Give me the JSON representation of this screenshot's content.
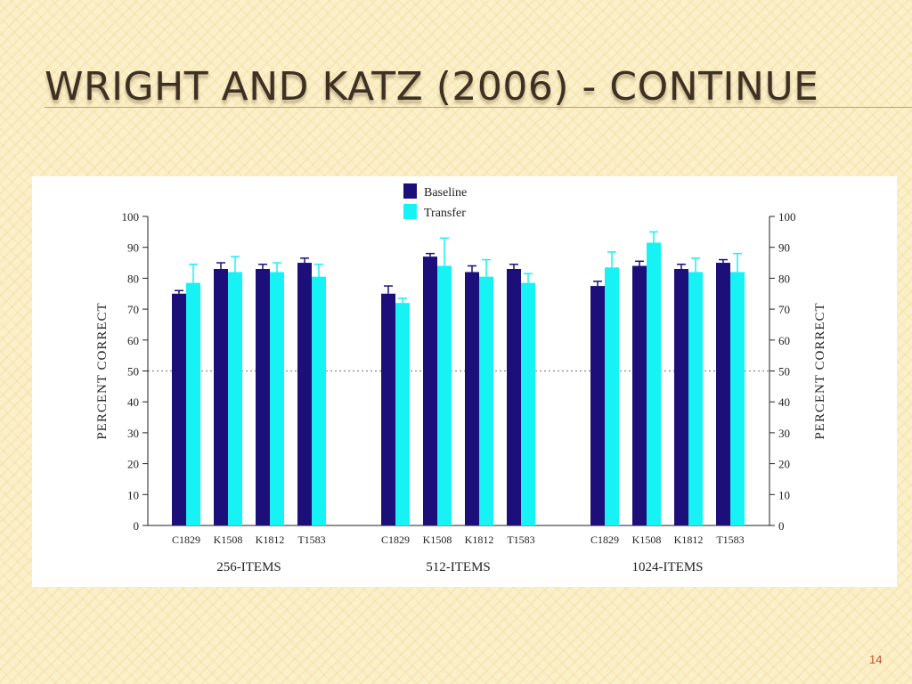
{
  "slide": {
    "title": "Wright and Katz (2006)  - Continue",
    "page_number": "14"
  },
  "chart_data": {
    "type": "bar",
    "ylabel_left": "PERCENT CORRECT",
    "ylabel_right": "PERCENT CORRECT",
    "ylim": [
      0,
      100
    ],
    "yticks": [
      0,
      10,
      20,
      30,
      40,
      50,
      60,
      70,
      80,
      90,
      100
    ],
    "reference_line": 50,
    "legend": [
      {
        "name": "Baseline",
        "color": "#1c0f7a"
      },
      {
        "name": "Transfer",
        "color": "#17f2f4"
      }
    ],
    "groups": [
      {
        "label": "256-ITEMS",
        "categories": [
          "C1829",
          "K1508",
          "K1812",
          "T1583"
        ],
        "baseline": [
          75,
          83,
          83,
          85
        ],
        "baseline_error": [
          1,
          2,
          1.5,
          1.5
        ],
        "transfer": [
          78.5,
          82,
          82,
          80.5
        ],
        "transfer_error": [
          6,
          5,
          3,
          4
        ]
      },
      {
        "label": "512-ITEMS",
        "categories": [
          "C1829",
          "K1508",
          "K1812",
          "T1583"
        ],
        "baseline": [
          75,
          87,
          82,
          83
        ],
        "baseline_error": [
          2.5,
          1,
          2,
          1.5
        ],
        "transfer": [
          72,
          84,
          80.5,
          78.5
        ],
        "transfer_error": [
          1.5,
          9,
          5.5,
          3
        ]
      },
      {
        "label": "1024-ITEMS",
        "categories": [
          "C1829",
          "K1508",
          "K1812",
          "T1583"
        ],
        "baseline": [
          77.5,
          84,
          83,
          85
        ],
        "baseline_error": [
          1.5,
          1.5,
          1.5,
          1
        ],
        "transfer": [
          83.5,
          91.5,
          82,
          82
        ],
        "transfer_error": [
          5,
          3.5,
          4.5,
          6
        ]
      }
    ]
  }
}
